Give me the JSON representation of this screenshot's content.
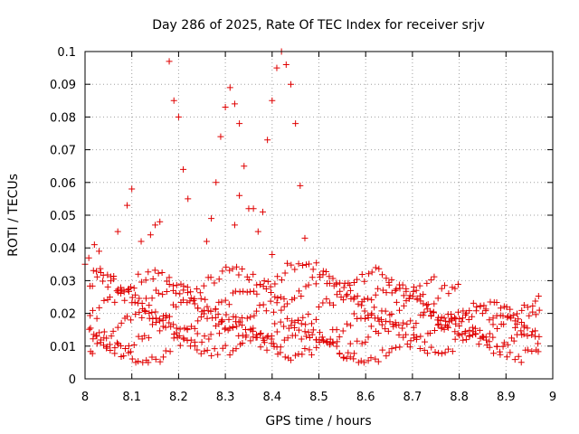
{
  "chart_data": {
    "type": "scatter",
    "title": "Day 286 of 2025, Rate Of TEC Index for receiver srjv",
    "xlabel": "GPS time / hours",
    "ylabel": "ROTI / TECUs",
    "xlim": [
      8,
      9
    ],
    "ylim": [
      0,
      0.1
    ],
    "xticks": [
      "8",
      "8.1",
      "8.2",
      "8.3",
      "8.4",
      "8.5",
      "8.6",
      "8.7",
      "8.8",
      "8.9",
      "9"
    ],
    "yticks": [
      "0",
      "0.01",
      "0.02",
      "0.03",
      "0.04",
      "0.05",
      "0.06",
      "0.07",
      "0.08",
      "0.09",
      "0.1"
    ],
    "grid": true,
    "marker": "+",
    "color": "#e00000",
    "series": [
      {
        "name": "ROTI",
        "x_range": [
          8.01,
          8.97
        ],
        "band_levels": [
          0.009,
          0.013,
          0.016,
          0.021,
          0.026,
          0.031
        ],
        "outliers": [
          [
            8.0,
            0.035
          ],
          [
            8.02,
            0.041
          ],
          [
            8.03,
            0.039
          ],
          [
            8.07,
            0.045
          ],
          [
            8.09,
            0.053
          ],
          [
            8.1,
            0.058
          ],
          [
            8.12,
            0.042
          ],
          [
            8.14,
            0.044
          ],
          [
            8.15,
            0.047
          ],
          [
            8.16,
            0.048
          ],
          [
            8.18,
            0.097
          ],
          [
            8.19,
            0.085
          ],
          [
            8.2,
            0.08
          ],
          [
            8.21,
            0.064
          ],
          [
            8.22,
            0.055
          ],
          [
            8.27,
            0.049
          ],
          [
            8.28,
            0.06
          ],
          [
            8.29,
            0.074
          ],
          [
            8.3,
            0.083
          ],
          [
            8.31,
            0.089
          ],
          [
            8.32,
            0.084
          ],
          [
            8.33,
            0.078
          ],
          [
            8.34,
            0.065
          ],
          [
            8.35,
            0.052
          ],
          [
            8.33,
            0.056
          ],
          [
            8.37,
            0.045
          ],
          [
            8.38,
            0.051
          ],
          [
            8.39,
            0.073
          ],
          [
            8.4,
            0.085
          ],
          [
            8.41,
            0.095
          ],
          [
            8.42,
            0.1
          ],
          [
            8.43,
            0.096
          ],
          [
            8.44,
            0.09
          ],
          [
            8.45,
            0.078
          ],
          [
            8.46,
            0.059
          ],
          [
            8.47,
            0.043
          ],
          [
            8.32,
            0.047
          ],
          [
            8.36,
            0.052
          ],
          [
            8.4,
            0.038
          ],
          [
            8.26,
            0.042
          ]
        ]
      }
    ]
  }
}
